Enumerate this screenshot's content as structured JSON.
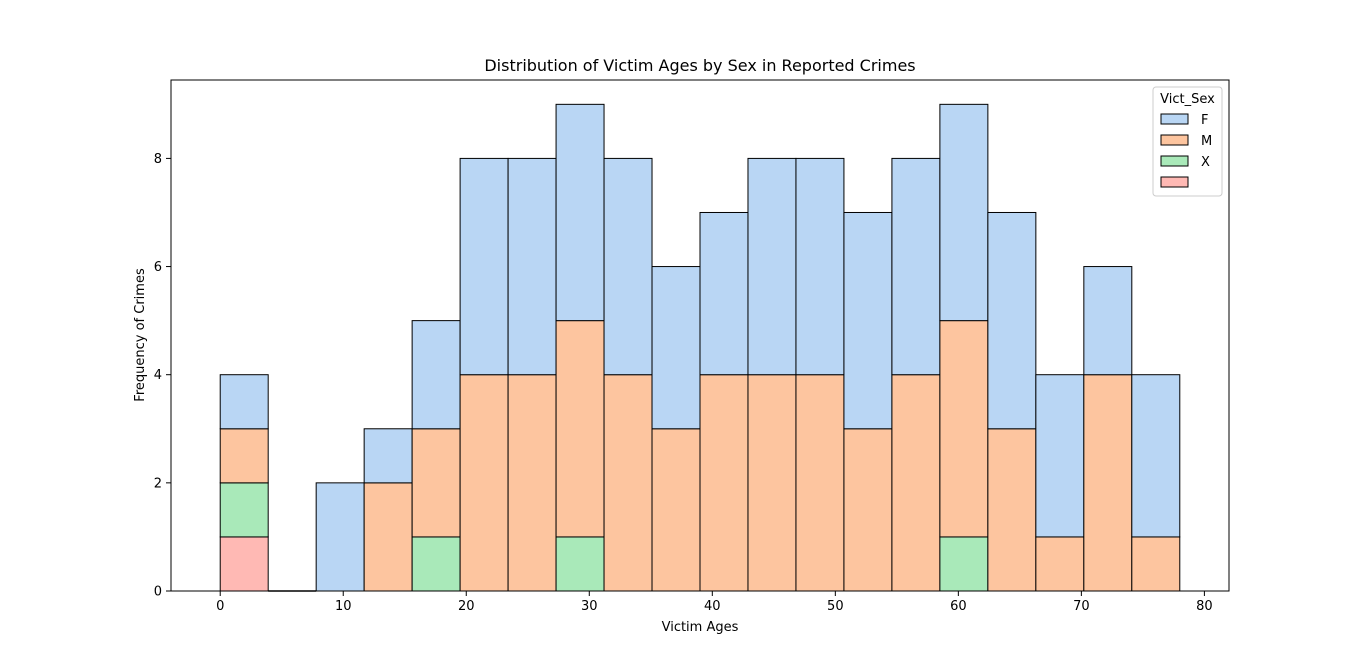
{
  "chart_data": {
    "type": "bar",
    "stacked": true,
    "title": "Distribution of Victim Ages by Sex in Reported Crimes",
    "xlabel": "Victim Ages",
    "ylabel": "Frequency of Crimes",
    "xlim": [
      -4,
      82
    ],
    "ylim": [
      0,
      9.45
    ],
    "xticks": [
      0,
      10,
      20,
      30,
      40,
      50,
      60,
      70,
      80
    ],
    "yticks": [
      0,
      2,
      4,
      6,
      8
    ],
    "grid": false,
    "legend": {
      "title": "Vict_Sex",
      "placement": "top-right",
      "entries": [
        {
          "label": "F",
          "key": "F"
        },
        {
          "label": "M",
          "key": "M"
        },
        {
          "label": "X",
          "key": "X"
        },
        {
          "label": "",
          "key": "H"
        }
      ]
    },
    "colors": {
      "F": "#b9d6f4",
      "M": "#fdc59f",
      "X": "#a9e9b9",
      "H": "#ffb9b4",
      "edge": "#000000"
    },
    "stack_order": [
      "H",
      "X",
      "M",
      "F"
    ],
    "bins": [
      {
        "x0": 0.0,
        "x1": 3.9,
        "F": 1,
        "M": 1,
        "X": 1,
        "H": 1
      },
      {
        "x0": 3.9,
        "x1": 7.8,
        "F": 0,
        "M": 0,
        "X": 0,
        "H": 0
      },
      {
        "x0": 7.8,
        "x1": 11.7,
        "F": 2,
        "M": 0,
        "X": 0,
        "H": 0
      },
      {
        "x0": 11.7,
        "x1": 15.6,
        "F": 1,
        "M": 2,
        "X": 0,
        "H": 0
      },
      {
        "x0": 15.6,
        "x1": 19.5,
        "F": 2,
        "M": 2,
        "X": 1,
        "H": 0
      },
      {
        "x0": 19.5,
        "x1": 23.4,
        "F": 4,
        "M": 4,
        "X": 0,
        "H": 0
      },
      {
        "x0": 23.4,
        "x1": 27.3,
        "F": 4,
        "M": 4,
        "X": 0,
        "H": 0
      },
      {
        "x0": 27.3,
        "x1": 31.2,
        "F": 4,
        "M": 4,
        "X": 1,
        "H": 0
      },
      {
        "x0": 31.2,
        "x1": 35.1,
        "F": 4,
        "M": 4,
        "X": 0,
        "H": 0
      },
      {
        "x0": 35.1,
        "x1": 39.0,
        "F": 3,
        "M": 3,
        "X": 0,
        "H": 0
      },
      {
        "x0": 39.0,
        "x1": 42.9,
        "F": 3,
        "M": 4,
        "X": 0,
        "H": 0
      },
      {
        "x0": 42.9,
        "x1": 46.8,
        "F": 4,
        "M": 4,
        "X": 0,
        "H": 0
      },
      {
        "x0": 46.8,
        "x1": 50.7,
        "F": 4,
        "M": 4,
        "X": 0,
        "H": 0
      },
      {
        "x0": 50.7,
        "x1": 54.6,
        "F": 4,
        "M": 3,
        "X": 0,
        "H": 0
      },
      {
        "x0": 54.6,
        "x1": 58.5,
        "F": 4,
        "M": 4,
        "X": 0,
        "H": 0
      },
      {
        "x0": 58.5,
        "x1": 62.4,
        "F": 4,
        "M": 4,
        "X": 1,
        "H": 0
      },
      {
        "x0": 62.4,
        "x1": 66.3,
        "F": 4,
        "M": 3,
        "X": 0,
        "H": 0
      },
      {
        "x0": 66.3,
        "x1": 70.2,
        "F": 3,
        "M": 1,
        "X": 0,
        "H": 0
      },
      {
        "x0": 70.2,
        "x1": 74.1,
        "F": 2,
        "M": 4,
        "X": 0,
        "H": 0
      },
      {
        "x0": 74.1,
        "x1": 78.0,
        "F": 3,
        "M": 1,
        "X": 0,
        "H": 0
      }
    ]
  }
}
